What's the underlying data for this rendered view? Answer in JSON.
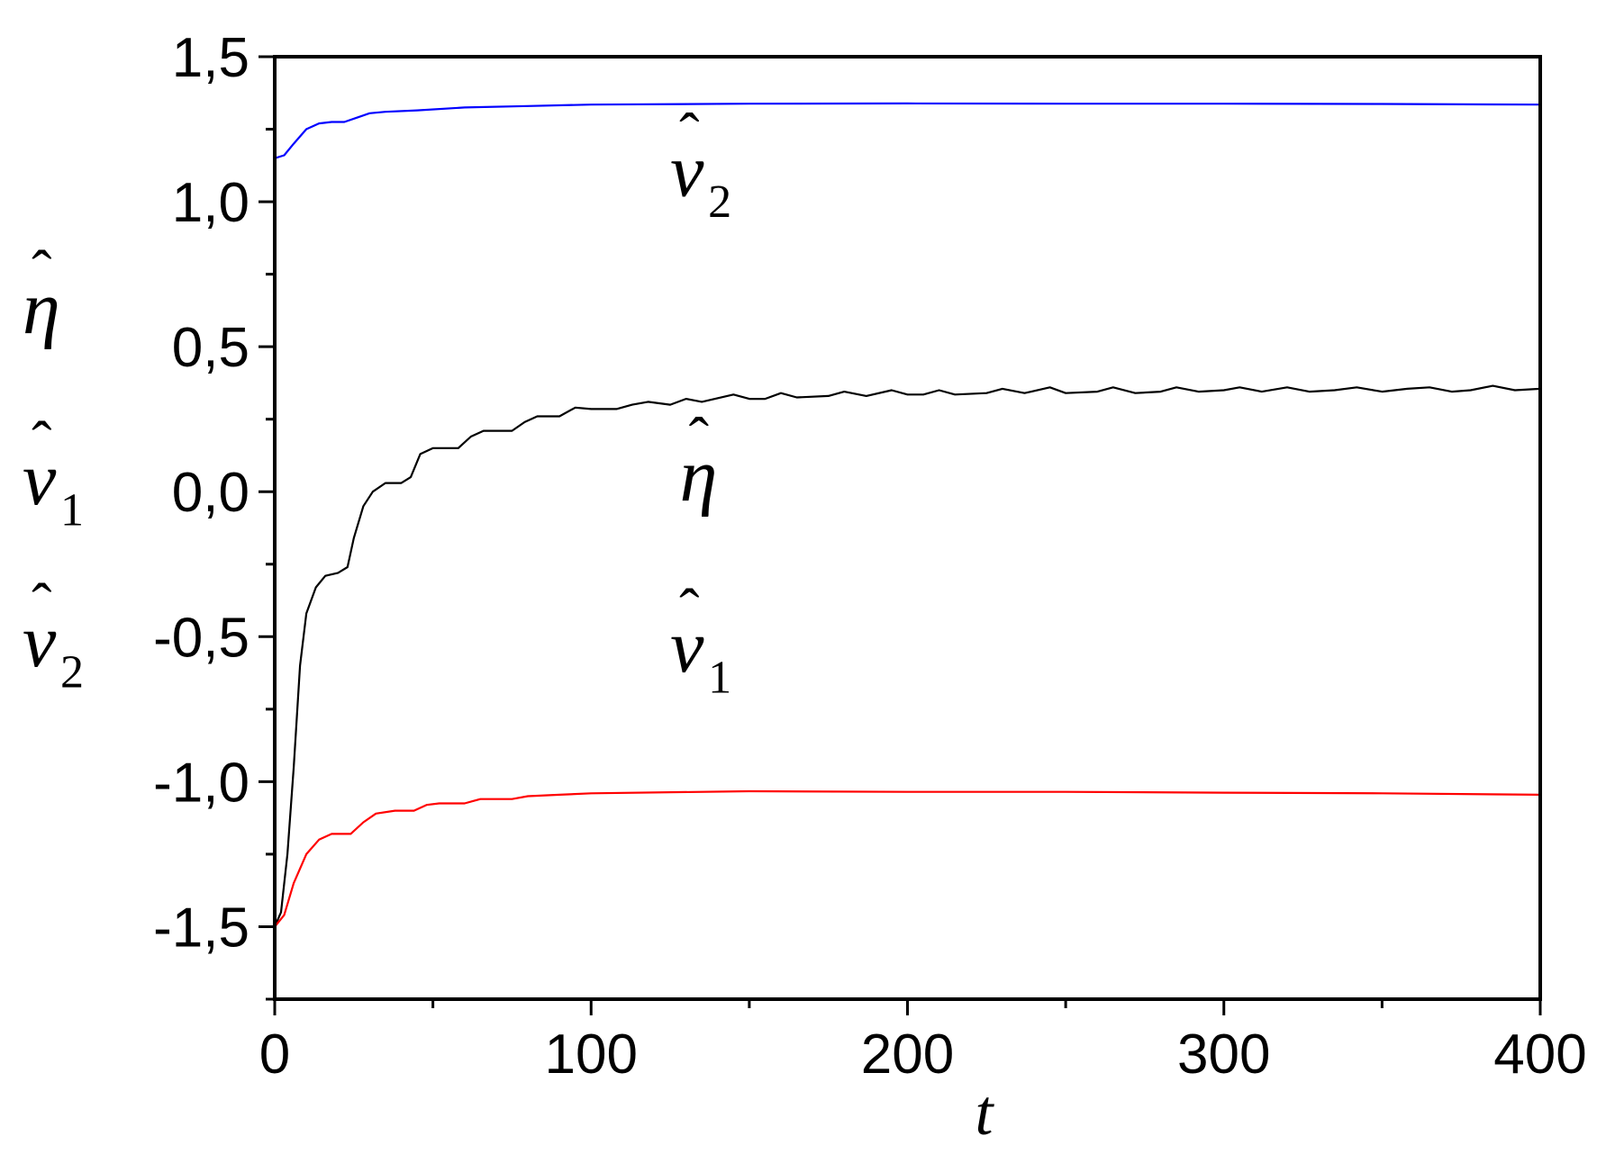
{
  "chart_data": {
    "type": "line",
    "title": "",
    "xlabel": "t",
    "ylabel_parts": [
      {
        "sym": "η",
        "sub": ""
      },
      {
        "sym": "v",
        "sub": "1"
      },
      {
        "sym": "v",
        "sub": "2"
      }
    ],
    "xlim": [
      0,
      400
    ],
    "ylim": [
      -1.75,
      1.5
    ],
    "x_ticks": [
      0,
      100,
      200,
      300,
      400
    ],
    "x_tick_labels": [
      "0",
      "100",
      "200",
      "300",
      "400"
    ],
    "y_ticks": [
      -1.5,
      -1.0,
      -0.5,
      0.0,
      0.5,
      1.0,
      1.5
    ],
    "y_tick_labels": [
      "-1,5",
      "-1,0",
      "-0,5",
      "0,0",
      "0,5",
      "1,0",
      "1,5"
    ],
    "grid": false,
    "series": [
      {
        "name": "v2",
        "color": "#0000ff",
        "points": [
          [
            0,
            1.15
          ],
          [
            3,
            1.16
          ],
          [
            6,
            1.2
          ],
          [
            10,
            1.25
          ],
          [
            14,
            1.27
          ],
          [
            18,
            1.275
          ],
          [
            22,
            1.275
          ],
          [
            26,
            1.29
          ],
          [
            30,
            1.305
          ],
          [
            35,
            1.31
          ],
          [
            45,
            1.315
          ],
          [
            60,
            1.325
          ],
          [
            80,
            1.33
          ],
          [
            100,
            1.335
          ],
          [
            150,
            1.338
          ],
          [
            200,
            1.339
          ],
          [
            250,
            1.338
          ],
          [
            300,
            1.338
          ],
          [
            350,
            1.337
          ],
          [
            400,
            1.335
          ]
        ]
      },
      {
        "name": "eta",
        "color": "#000000",
        "points": [
          [
            0,
            -1.5
          ],
          [
            2,
            -1.45
          ],
          [
            4,
            -1.25
          ],
          [
            6,
            -0.95
          ],
          [
            8,
            -0.6
          ],
          [
            10,
            -0.42
          ],
          [
            13,
            -0.33
          ],
          [
            16,
            -0.29
          ],
          [
            20,
            -0.28
          ],
          [
            23,
            -0.26
          ],
          [
            25,
            -0.16
          ],
          [
            28,
            -0.05
          ],
          [
            31,
            0.0
          ],
          [
            35,
            0.03
          ],
          [
            40,
            0.03
          ],
          [
            43,
            0.05
          ],
          [
            46,
            0.13
          ],
          [
            50,
            0.15
          ],
          [
            58,
            0.15
          ],
          [
            62,
            0.19
          ],
          [
            66,
            0.21
          ],
          [
            75,
            0.21
          ],
          [
            79,
            0.24
          ],
          [
            83,
            0.26
          ],
          [
            90,
            0.26
          ],
          [
            95,
            0.29
          ],
          [
            100,
            0.285
          ],
          [
            108,
            0.285
          ],
          [
            113,
            0.3
          ],
          [
            118,
            0.31
          ],
          [
            125,
            0.3
          ],
          [
            130,
            0.32
          ],
          [
            135,
            0.31
          ],
          [
            145,
            0.335
          ],
          [
            150,
            0.32
          ],
          [
            155,
            0.32
          ],
          [
            160,
            0.34
          ],
          [
            165,
            0.325
          ],
          [
            175,
            0.33
          ],
          [
            180,
            0.345
          ],
          [
            187,
            0.33
          ],
          [
            195,
            0.35
          ],
          [
            200,
            0.335
          ],
          [
            205,
            0.335
          ],
          [
            210,
            0.35
          ],
          [
            215,
            0.335
          ],
          [
            225,
            0.34
          ],
          [
            230,
            0.355
          ],
          [
            237,
            0.34
          ],
          [
            245,
            0.36
          ],
          [
            250,
            0.34
          ],
          [
            260,
            0.345
          ],
          [
            265,
            0.36
          ],
          [
            272,
            0.34
          ],
          [
            280,
            0.345
          ],
          [
            285,
            0.36
          ],
          [
            292,
            0.345
          ],
          [
            300,
            0.35
          ],
          [
            305,
            0.36
          ],
          [
            312,
            0.345
          ],
          [
            320,
            0.36
          ],
          [
            327,
            0.345
          ],
          [
            335,
            0.35
          ],
          [
            342,
            0.36
          ],
          [
            350,
            0.345
          ],
          [
            358,
            0.355
          ],
          [
            365,
            0.36
          ],
          [
            372,
            0.345
          ],
          [
            378,
            0.35
          ],
          [
            385,
            0.365
          ],
          [
            392,
            0.35
          ],
          [
            400,
            0.355
          ]
        ]
      },
      {
        "name": "v1",
        "color": "#ff0000",
        "points": [
          [
            0,
            -1.5
          ],
          [
            3,
            -1.46
          ],
          [
            6,
            -1.35
          ],
          [
            10,
            -1.25
          ],
          [
            14,
            -1.2
          ],
          [
            18,
            -1.18
          ],
          [
            24,
            -1.18
          ],
          [
            28,
            -1.14
          ],
          [
            32,
            -1.11
          ],
          [
            38,
            -1.1
          ],
          [
            44,
            -1.1
          ],
          [
            48,
            -1.08
          ],
          [
            52,
            -1.075
          ],
          [
            60,
            -1.075
          ],
          [
            65,
            -1.06
          ],
          [
            75,
            -1.06
          ],
          [
            80,
            -1.05
          ],
          [
            90,
            -1.045
          ],
          [
            100,
            -1.04
          ],
          [
            150,
            -1.033
          ],
          [
            200,
            -1.035
          ],
          [
            250,
            -1.035
          ],
          [
            300,
            -1.038
          ],
          [
            350,
            -1.04
          ],
          [
            400,
            -1.045
          ]
        ]
      }
    ],
    "annotations": [
      {
        "sym": "v",
        "sub": "2",
        "x": 125,
        "y": 1.02
      },
      {
        "sym": "η",
        "sub": "",
        "x": 128,
        "y": -0.03
      },
      {
        "sym": "v",
        "sub": "1",
        "x": 125,
        "y": -0.62
      }
    ]
  }
}
